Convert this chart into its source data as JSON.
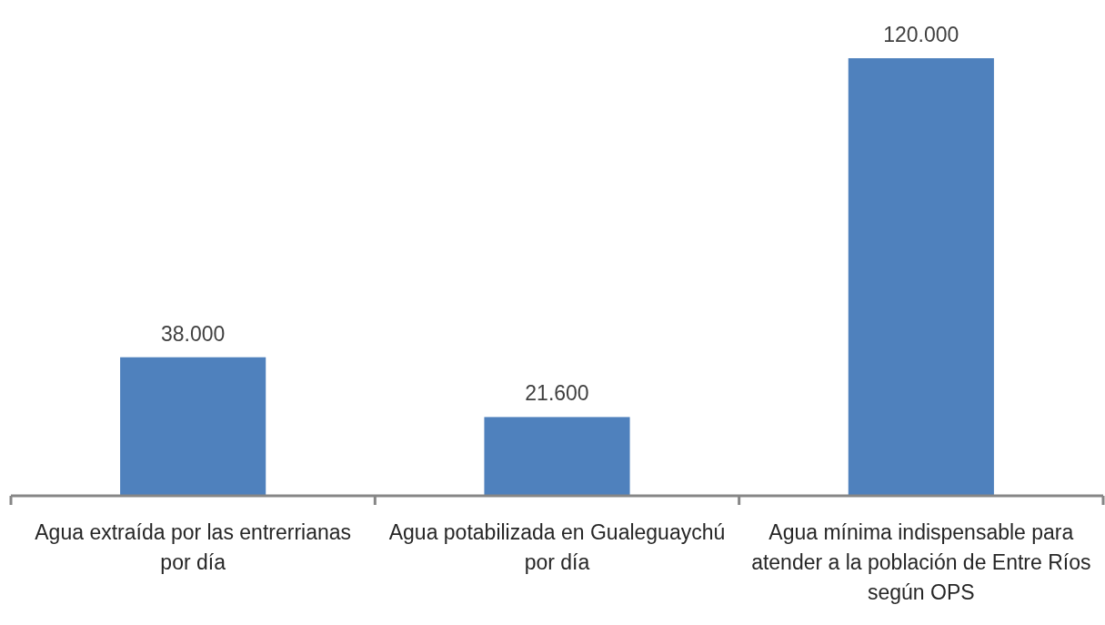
{
  "chart_data": {
    "type": "bar",
    "categories": [
      "Agua extraída por las entrerrianas por día",
      "Agua potabilizada en Gualeguaychú por día",
      "Agua mínima indispensable para atender a la población de Entre Ríos según OPS"
    ],
    "values": [
      38000,
      21600,
      120000
    ],
    "value_labels": [
      "38.000",
      "21.600",
      "120.000"
    ],
    "color": "#4f81bd"
  }
}
